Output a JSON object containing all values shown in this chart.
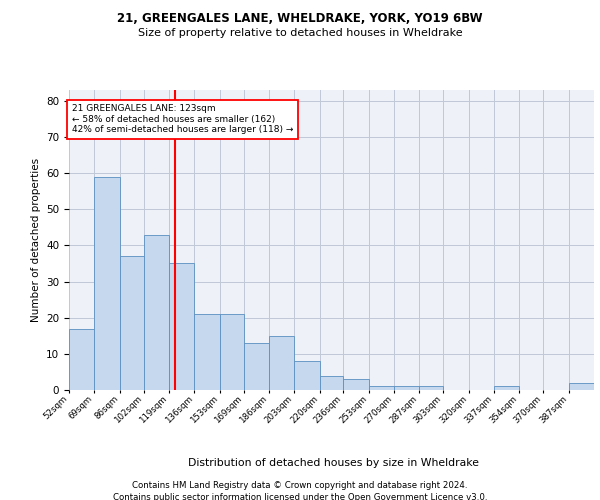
{
  "title1": "21, GREENGALES LANE, WHELDRAKE, YORK, YO19 6BW",
  "title2": "Size of property relative to detached houses in Wheldrake",
  "xlabel": "Distribution of detached houses by size in Wheldrake",
  "ylabel": "Number of detached properties",
  "bin_labels": [
    "52sqm",
    "69sqm",
    "86sqm",
    "102sqm",
    "119sqm",
    "136sqm",
    "153sqm",
    "169sqm",
    "186sqm",
    "203sqm",
    "220sqm",
    "236sqm",
    "253sqm",
    "270sqm",
    "287sqm",
    "303sqm",
    "320sqm",
    "337sqm",
    "354sqm",
    "370sqm",
    "387sqm"
  ],
  "bin_edges": [
    52,
    69,
    86,
    102,
    119,
    136,
    153,
    169,
    186,
    203,
    220,
    236,
    253,
    270,
    287,
    303,
    320,
    337,
    354,
    370,
    387,
    404
  ],
  "values": [
    17,
    59,
    37,
    43,
    35,
    21,
    21,
    13,
    15,
    8,
    4,
    3,
    1,
    1,
    1,
    0,
    0,
    1,
    0,
    0,
    2
  ],
  "bar_color": "#c5d8ed",
  "bar_edge_color": "#5a8fc0",
  "grid_color": "#c0c8d8",
  "background_color": "#eef2f8",
  "vline_x": 123,
  "vline_color": "red",
  "annotation_line1": "21 GREENGALES LANE: 123sqm",
  "annotation_line2": "← 58% of detached houses are smaller (162)",
  "annotation_line3": "42% of semi-detached houses are larger (118) →",
  "annotation_box_color": "white",
  "annotation_box_edge_color": "red",
  "ylim": [
    0,
    83
  ],
  "yticks": [
    0,
    10,
    20,
    30,
    40,
    50,
    60,
    70,
    80
  ],
  "footer1": "Contains HM Land Registry data © Crown copyright and database right 2024.",
  "footer2": "Contains public sector information licensed under the Open Government Licence v3.0."
}
